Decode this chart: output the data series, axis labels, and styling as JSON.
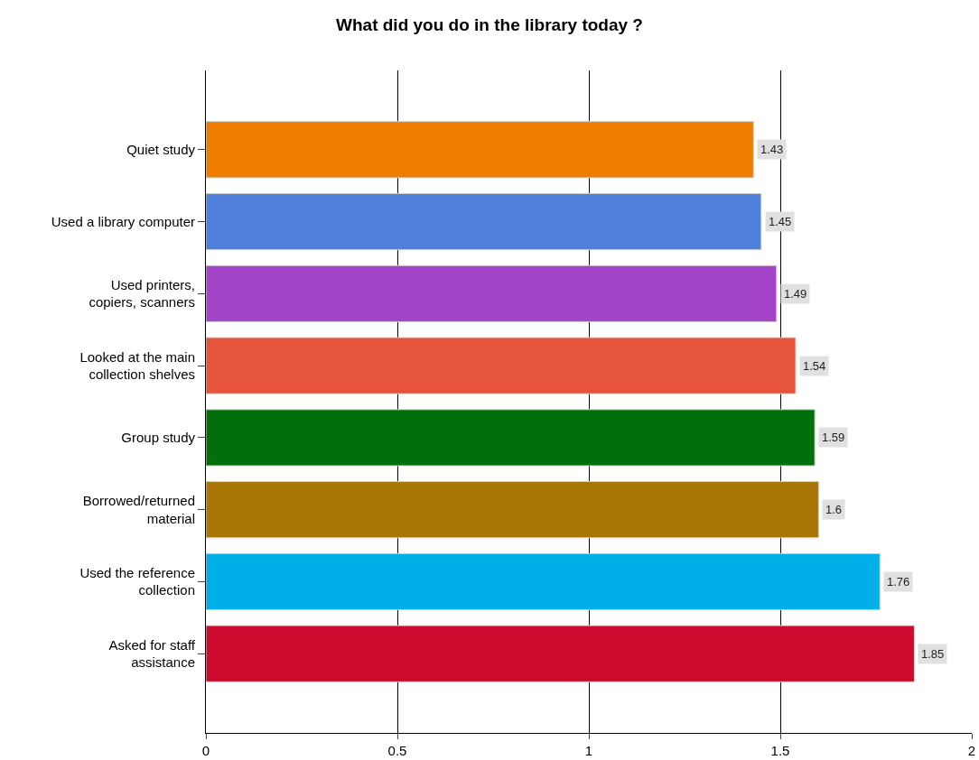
{
  "chart_data": {
    "type": "bar",
    "orientation": "horizontal",
    "title": "What did you do in the library today ?",
    "categories": [
      "Quiet study",
      "Used a library computer",
      "Used printers, copiers, scanners",
      "Looked at the main collection shelves",
      "Group study",
      "Borrowed/returned material",
      "Used the reference collection",
      "Asked for staff assistance"
    ],
    "values": [
      1.43,
      1.45,
      1.49,
      1.54,
      1.59,
      1.6,
      1.76,
      1.85
    ],
    "colors": [
      "#ee7d00",
      "#4f80dc",
      "#a444c8",
      "#e6553b",
      "#02700a",
      "#a87606",
      "#00aee8",
      "#cc0a2e"
    ],
    "xlim": [
      0,
      2
    ],
    "xticks": [
      0,
      0.5,
      1,
      1.5,
      2
    ],
    "grid": "x",
    "data_labels": true,
    "legend": false
  }
}
